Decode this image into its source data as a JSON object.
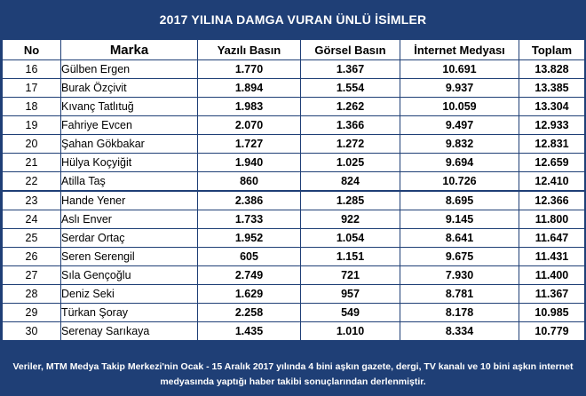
{
  "title": "2017 YILINA DAMGA VURAN ÜNLÜ İSİMLER",
  "columns": [
    "No",
    "Marka",
    "Yazılı Basın",
    "Görsel Basın",
    "İnternet Medyası",
    "Toplam"
  ],
  "rows": [
    {
      "no": "16",
      "marka": "Gülben Ergen",
      "yazili": "1.770",
      "gorsel": "1.367",
      "internet": "10.691",
      "toplam": "13.828"
    },
    {
      "no": "17",
      "marka": "Burak Özçivit",
      "yazili": "1.894",
      "gorsel": "1.554",
      "internet": "9.937",
      "toplam": "13.385"
    },
    {
      "no": "18",
      "marka": "Kıvanç Tatlıtuğ",
      "yazili": "1.983",
      "gorsel": "1.262",
      "internet": "10.059",
      "toplam": "13.304"
    },
    {
      "no": "19",
      "marka": "Fahriye Evcen",
      "yazili": "2.070",
      "gorsel": "1.366",
      "internet": "9.497",
      "toplam": "12.933"
    },
    {
      "no": "20",
      "marka": "Şahan Gökbakar",
      "yazili": "1.727",
      "gorsel": "1.272",
      "internet": "9.832",
      "toplam": "12.831"
    },
    {
      "no": "21",
      "marka": "Hülya Koçyiğit",
      "yazili": "1.940",
      "gorsel": "1.025",
      "internet": "9.694",
      "toplam": "12.659"
    },
    {
      "no": "22",
      "marka": "Atilla Taş",
      "yazili": "860",
      "gorsel": "824",
      "internet": "10.726",
      "toplam": "12.410"
    },
    {
      "no": "23",
      "marka": "Hande Yener",
      "yazili": "2.386",
      "gorsel": "1.285",
      "internet": "8.695",
      "toplam": "12.366"
    },
    {
      "no": "24",
      "marka": "Aslı Enver",
      "yazili": "1.733",
      "gorsel": "922",
      "internet": "9.145",
      "toplam": "11.800"
    },
    {
      "no": "25",
      "marka": "Serdar Ortaç",
      "yazili": "1.952",
      "gorsel": "1.054",
      "internet": "8.641",
      "toplam": "11.647"
    },
    {
      "no": "26",
      "marka": "Seren Serengil",
      "yazili": "605",
      "gorsel": "1.151",
      "internet": "9.675",
      "toplam": "11.431"
    },
    {
      "no": "27",
      "marka": "Sıla Gençoğlu",
      "yazili": "2.749",
      "gorsel": "721",
      "internet": "7.930",
      "toplam": "11.400"
    },
    {
      "no": "28",
      "marka": "Deniz Seki",
      "yazili": "1.629",
      "gorsel": "957",
      "internet": "8.781",
      "toplam": "11.367"
    },
    {
      "no": "29",
      "marka": "Türkan Şoray",
      "yazili": "2.258",
      "gorsel": "549",
      "internet": "8.178",
      "toplam": "10.985"
    },
    {
      "no": "30",
      "marka": "Serenay Sarıkaya",
      "yazili": "1.435",
      "gorsel": "1.010",
      "internet": "8.334",
      "toplam": "10.779"
    }
  ],
  "footer": {
    "line1": "Veriler, MTM Medya Takip Merkezi'nin Ocak - 15 Aralık 2017 yılında 4 bini aşkın gazete, dergi, TV kanalı ve 10 bini aşkın internet",
    "line2": "medyasında yaptığı haber takibi sonuçlarından derlenmiştir."
  },
  "colors": {
    "header_band": "#1f3f76",
    "cell_bg": "#ffffff",
    "text": "#000000"
  }
}
